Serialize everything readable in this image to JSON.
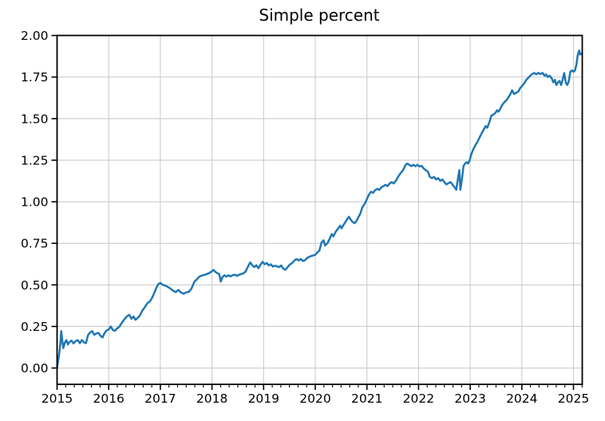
{
  "chart_data": {
    "type": "line",
    "title": "Simple percent",
    "xlabel": "",
    "ylabel": "",
    "grid": true,
    "legend_position": "none",
    "xlim": [
      2015.0,
      2025.17
    ],
    "ylim": [
      -0.098,
      2.0
    ],
    "x_ticks": [
      2015,
      2016,
      2017,
      2018,
      2019,
      2020,
      2021,
      2022,
      2023,
      2024,
      2025
    ],
    "x_tick_labels": [
      "2015",
      "2016",
      "2017",
      "2018",
      "2019",
      "2020",
      "2021",
      "2022",
      "2023",
      "2024",
      "2025"
    ],
    "x_minor_ticks_per_year": 6,
    "y_ticks": [
      0.0,
      0.25,
      0.5,
      0.75,
      1.0,
      1.25,
      1.5,
      1.75,
      2.0
    ],
    "y_tick_labels": [
      "0.00",
      "0.25",
      "0.50",
      "0.75",
      "1.00",
      "1.25",
      "1.50",
      "1.75",
      "2.00"
    ],
    "colors": {
      "line": "#1f77b4",
      "grid": "#cccccc",
      "axis": "#000000",
      "background": "#ffffff"
    },
    "series": [
      {
        "name": "simple percent",
        "color": "#1f77b4",
        "points": [
          [
            2015.0,
            0.002
          ],
          [
            2015.03,
            0.06
          ],
          [
            2015.05,
            0.105
          ],
          [
            2015.07,
            0.17
          ],
          [
            2015.08,
            0.222
          ],
          [
            2015.1,
            0.165
          ],
          [
            2015.12,
            0.12
          ],
          [
            2015.15,
            0.152
          ],
          [
            2015.18,
            0.168
          ],
          [
            2015.21,
            0.142
          ],
          [
            2015.24,
            0.156
          ],
          [
            2015.28,
            0.165
          ],
          [
            2015.32,
            0.148
          ],
          [
            2015.36,
            0.162
          ],
          [
            2015.4,
            0.168
          ],
          [
            2015.44,
            0.15
          ],
          [
            2015.48,
            0.168
          ],
          [
            2015.52,
            0.154
          ],
          [
            2015.56,
            0.15
          ],
          [
            2015.6,
            0.198
          ],
          [
            2015.64,
            0.214
          ],
          [
            2015.68,
            0.222
          ],
          [
            2015.72,
            0.2
          ],
          [
            2015.76,
            0.208
          ],
          [
            2015.8,
            0.212
          ],
          [
            2015.84,
            0.194
          ],
          [
            2015.88,
            0.184
          ],
          [
            2015.92,
            0.21
          ],
          [
            2015.96,
            0.226
          ],
          [
            2016.0,
            0.232
          ],
          [
            2016.04,
            0.25
          ],
          [
            2016.08,
            0.228
          ],
          [
            2016.12,
            0.224
          ],
          [
            2016.16,
            0.238
          ],
          [
            2016.2,
            0.246
          ],
          [
            2016.25,
            0.27
          ],
          [
            2016.3,
            0.292
          ],
          [
            2016.35,
            0.31
          ],
          [
            2016.4,
            0.32
          ],
          [
            2016.44,
            0.296
          ],
          [
            2016.48,
            0.31
          ],
          [
            2016.52,
            0.29
          ],
          [
            2016.56,
            0.302
          ],
          [
            2016.6,
            0.314
          ],
          [
            2016.65,
            0.345
          ],
          [
            2016.7,
            0.366
          ],
          [
            2016.75,
            0.39
          ],
          [
            2016.8,
            0.402
          ],
          [
            2016.84,
            0.422
          ],
          [
            2016.88,
            0.45
          ],
          [
            2016.92,
            0.48
          ],
          [
            2016.96,
            0.505
          ],
          [
            2017.0,
            0.512
          ],
          [
            2017.05,
            0.5
          ],
          [
            2017.1,
            0.495
          ],
          [
            2017.15,
            0.487
          ],
          [
            2017.2,
            0.477
          ],
          [
            2017.25,
            0.464
          ],
          [
            2017.3,
            0.457
          ],
          [
            2017.35,
            0.47
          ],
          [
            2017.4,
            0.454
          ],
          [
            2017.45,
            0.447
          ],
          [
            2017.5,
            0.455
          ],
          [
            2017.55,
            0.458
          ],
          [
            2017.6,
            0.476
          ],
          [
            2017.63,
            0.498
          ],
          [
            2017.66,
            0.52
          ],
          [
            2017.7,
            0.531
          ],
          [
            2017.75,
            0.548
          ],
          [
            2017.8,
            0.556
          ],
          [
            2017.85,
            0.56
          ],
          [
            2017.9,
            0.565
          ],
          [
            2017.95,
            0.572
          ],
          [
            2018.0,
            0.582
          ],
          [
            2018.03,
            0.59
          ],
          [
            2018.06,
            0.58
          ],
          [
            2018.1,
            0.571
          ],
          [
            2018.14,
            0.565
          ],
          [
            2018.17,
            0.52
          ],
          [
            2018.2,
            0.545
          ],
          [
            2018.24,
            0.558
          ],
          [
            2018.28,
            0.55
          ],
          [
            2018.32,
            0.558
          ],
          [
            2018.36,
            0.551
          ],
          [
            2018.4,
            0.558
          ],
          [
            2018.44,
            0.562
          ],
          [
            2018.48,
            0.554
          ],
          [
            2018.52,
            0.56
          ],
          [
            2018.56,
            0.565
          ],
          [
            2018.6,
            0.568
          ],
          [
            2018.65,
            0.58
          ],
          [
            2018.7,
            0.612
          ],
          [
            2018.74,
            0.635
          ],
          [
            2018.78,
            0.618
          ],
          [
            2018.82,
            0.607
          ],
          [
            2018.86,
            0.618
          ],
          [
            2018.9,
            0.6
          ],
          [
            2018.94,
            0.622
          ],
          [
            2018.98,
            0.638
          ],
          [
            2019.02,
            0.624
          ],
          [
            2019.06,
            0.632
          ],
          [
            2019.1,
            0.617
          ],
          [
            2019.14,
            0.624
          ],
          [
            2019.18,
            0.61
          ],
          [
            2019.22,
            0.616
          ],
          [
            2019.26,
            0.611
          ],
          [
            2019.3,
            0.607
          ],
          [
            2019.34,
            0.617
          ],
          [
            2019.38,
            0.598
          ],
          [
            2019.42,
            0.591
          ],
          [
            2019.46,
            0.605
          ],
          [
            2019.5,
            0.621
          ],
          [
            2019.55,
            0.631
          ],
          [
            2019.6,
            0.648
          ],
          [
            2019.64,
            0.655
          ],
          [
            2019.68,
            0.647
          ],
          [
            2019.72,
            0.656
          ],
          [
            2019.76,
            0.644
          ],
          [
            2019.8,
            0.648
          ],
          [
            2019.85,
            0.664
          ],
          [
            2019.9,
            0.671
          ],
          [
            2019.95,
            0.676
          ],
          [
            2020.0,
            0.681
          ],
          [
            2020.04,
            0.695
          ],
          [
            2020.08,
            0.706
          ],
          [
            2020.12,
            0.755
          ],
          [
            2020.16,
            0.768
          ],
          [
            2020.19,
            0.737
          ],
          [
            2020.24,
            0.752
          ],
          [
            2020.28,
            0.778
          ],
          [
            2020.32,
            0.806
          ],
          [
            2020.35,
            0.792
          ],
          [
            2020.4,
            0.822
          ],
          [
            2020.44,
            0.838
          ],
          [
            2020.48,
            0.856
          ],
          [
            2020.51,
            0.84
          ],
          [
            2020.55,
            0.862
          ],
          [
            2020.6,
            0.886
          ],
          [
            2020.65,
            0.91
          ],
          [
            2020.68,
            0.895
          ],
          [
            2020.72,
            0.879
          ],
          [
            2020.76,
            0.871
          ],
          [
            2020.8,
            0.886
          ],
          [
            2020.84,
            0.91
          ],
          [
            2020.87,
            0.927
          ],
          [
            2020.91,
            0.965
          ],
          [
            2020.95,
            0.985
          ],
          [
            2020.98,
            1.002
          ],
          [
            2021.02,
            1.03
          ],
          [
            2021.05,
            1.048
          ],
          [
            2021.08,
            1.06
          ],
          [
            2021.12,
            1.054
          ],
          [
            2021.16,
            1.07
          ],
          [
            2021.2,
            1.078
          ],
          [
            2021.24,
            1.071
          ],
          [
            2021.28,
            1.086
          ],
          [
            2021.32,
            1.094
          ],
          [
            2021.36,
            1.102
          ],
          [
            2021.4,
            1.094
          ],
          [
            2021.44,
            1.11
          ],
          [
            2021.48,
            1.118
          ],
          [
            2021.52,
            1.11
          ],
          [
            2021.56,
            1.126
          ],
          [
            2021.6,
            1.148
          ],
          [
            2021.65,
            1.172
          ],
          [
            2021.7,
            1.19
          ],
          [
            2021.75,
            1.222
          ],
          [
            2021.78,
            1.23
          ],
          [
            2021.82,
            1.222
          ],
          [
            2021.86,
            1.214
          ],
          [
            2021.9,
            1.222
          ],
          [
            2021.94,
            1.214
          ],
          [
            2021.98,
            1.222
          ],
          [
            2022.02,
            1.212
          ],
          [
            2022.06,
            1.216
          ],
          [
            2022.1,
            1.2
          ],
          [
            2022.14,
            1.19
          ],
          [
            2022.18,
            1.182
          ],
          [
            2022.22,
            1.15
          ],
          [
            2022.26,
            1.142
          ],
          [
            2022.3,
            1.15
          ],
          [
            2022.34,
            1.134
          ],
          [
            2022.38,
            1.142
          ],
          [
            2022.42,
            1.126
          ],
          [
            2022.46,
            1.134
          ],
          [
            2022.5,
            1.118
          ],
          [
            2022.54,
            1.104
          ],
          [
            2022.58,
            1.112
          ],
          [
            2022.62,
            1.118
          ],
          [
            2022.66,
            1.102
          ],
          [
            2022.7,
            1.086
          ],
          [
            2022.73,
            1.072
          ],
          [
            2022.76,
            1.135
          ],
          [
            2022.79,
            1.19
          ],
          [
            2022.81,
            1.072
          ],
          [
            2022.84,
            1.135
          ],
          [
            2022.87,
            1.214
          ],
          [
            2022.9,
            1.23
          ],
          [
            2022.93,
            1.238
          ],
          [
            2022.96,
            1.23
          ],
          [
            2022.99,
            1.25
          ],
          [
            2023.02,
            1.285
          ],
          [
            2023.06,
            1.315
          ],
          [
            2023.1,
            1.34
          ],
          [
            2023.14,
            1.36
          ],
          [
            2023.18,
            1.385
          ],
          [
            2023.22,
            1.41
          ],
          [
            2023.26,
            1.432
          ],
          [
            2023.3,
            1.455
          ],
          [
            2023.33,
            1.445
          ],
          [
            2023.38,
            1.487
          ],
          [
            2023.41,
            1.518
          ],
          [
            2023.45,
            1.525
          ],
          [
            2023.49,
            1.535
          ],
          [
            2023.52,
            1.55
          ],
          [
            2023.55,
            1.542
          ],
          [
            2023.58,
            1.558
          ],
          [
            2023.62,
            1.582
          ],
          [
            2023.66,
            1.598
          ],
          [
            2023.7,
            1.61
          ],
          [
            2023.74,
            1.628
          ],
          [
            2023.78,
            1.648
          ],
          [
            2023.81,
            1.67
          ],
          [
            2023.85,
            1.648
          ],
          [
            2023.89,
            1.655
          ],
          [
            2023.93,
            1.662
          ],
          [
            2023.97,
            1.685
          ],
          [
            2024.0,
            1.695
          ],
          [
            2024.04,
            1.71
          ],
          [
            2024.09,
            1.735
          ],
          [
            2024.14,
            1.75
          ],
          [
            2024.19,
            1.766
          ],
          [
            2024.24,
            1.775
          ],
          [
            2024.28,
            1.766
          ],
          [
            2024.32,
            1.775
          ],
          [
            2024.36,
            1.768
          ],
          [
            2024.4,
            1.775
          ],
          [
            2024.44,
            1.758
          ],
          [
            2024.47,
            1.766
          ],
          [
            2024.5,
            1.75
          ],
          [
            2024.54,
            1.758
          ],
          [
            2024.58,
            1.742
          ],
          [
            2024.61,
            1.718
          ],
          [
            2024.64,
            1.734
          ],
          [
            2024.67,
            1.702
          ],
          [
            2024.7,
            1.718
          ],
          [
            2024.73,
            1.726
          ],
          [
            2024.76,
            1.702
          ],
          [
            2024.79,
            1.734
          ],
          [
            2024.82,
            1.774
          ],
          [
            2024.85,
            1.718
          ],
          [
            2024.88,
            1.702
          ],
          [
            2024.91,
            1.726
          ],
          [
            2024.94,
            1.782
          ],
          [
            2024.97,
            1.79
          ],
          [
            2025.0,
            1.782
          ],
          [
            2025.03,
            1.79
          ],
          [
            2025.06,
            1.83
          ],
          [
            2025.08,
            1.878
          ],
          [
            2025.11,
            1.91
          ],
          [
            2025.13,
            1.886
          ],
          [
            2025.16,
            1.892
          ]
        ]
      }
    ]
  }
}
